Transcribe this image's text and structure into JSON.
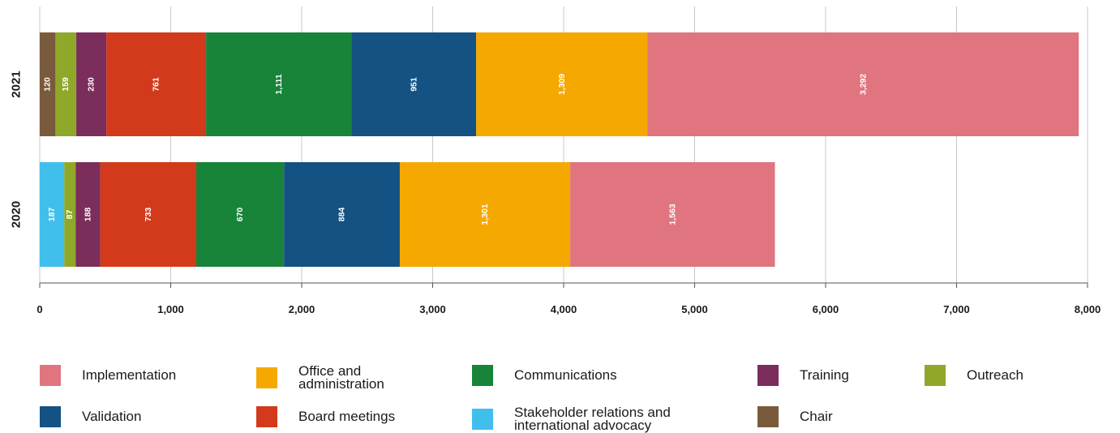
{
  "chart_data": {
    "type": "bar",
    "orientation": "horizontal",
    "stacked": true,
    "categories": [
      "2021",
      "2020"
    ],
    "xlim": [
      0,
      8000
    ],
    "xticks": [
      0,
      1000,
      2000,
      3000,
      4000,
      5000,
      6000,
      7000,
      8000
    ],
    "xtick_labels": [
      "0",
      "1,000",
      "2,000",
      "3,000",
      "4,000",
      "5,000",
      "6,000",
      "7,000",
      "8,000"
    ],
    "grid": true,
    "legend_position": "bottom",
    "series": [
      {
        "name": "Chair",
        "color": "#7a5a3c",
        "values": [
          120,
          0
        ],
        "labels": [
          "120",
          ""
        ]
      },
      {
        "name": "Stakeholder relations and international advocacy",
        "color": "#41bfec",
        "values": [
          0,
          187
        ],
        "labels": [
          "",
          "187"
        ]
      },
      {
        "name": "Outreach",
        "color": "#8fa829",
        "values": [
          159,
          87
        ],
        "labels": [
          "159",
          "87"
        ]
      },
      {
        "name": "Training",
        "color": "#7b2d5c",
        "values": [
          230,
          188
        ],
        "labels": [
          "230",
          "188"
        ]
      },
      {
        "name": "Board meetings",
        "color": "#d23a1b",
        "values": [
          761,
          733
        ],
        "labels": [
          "761",
          "733"
        ]
      },
      {
        "name": "Communications",
        "color": "#17843a",
        "values": [
          1111,
          670
        ],
        "labels": [
          "1,111",
          "670"
        ]
      },
      {
        "name": "Validation",
        "color": "#135283",
        "values": [
          951,
          884
        ],
        "labels": [
          "951",
          "884"
        ]
      },
      {
        "name": "Office and administration",
        "color": "#f5a800",
        "values": [
          1309,
          1301
        ],
        "labels": [
          "1,309",
          "1,301"
        ]
      },
      {
        "name": "Implementation",
        "color": "#e0757f",
        "values": [
          3292,
          1563
        ],
        "labels": [
          "3,292",
          "1,563"
        ]
      }
    ]
  },
  "legend": [
    {
      "label": "Implementation",
      "color": "#e0757f"
    },
    {
      "label": "Office and administration",
      "color": "#f5a800"
    },
    {
      "label": "Communications",
      "color": "#17843a"
    },
    {
      "label": "Training",
      "color": "#7b2d5c"
    },
    {
      "label": "Outreach",
      "color": "#8fa829"
    },
    {
      "label": "Validation",
      "color": "#135283"
    },
    {
      "label": "Board meetings",
      "color": "#d23a1b"
    },
    {
      "label": "Stakeholder relations and international advocacy",
      "color": "#41bfec"
    },
    {
      "label": "Chair",
      "color": "#7a5a3c"
    }
  ]
}
